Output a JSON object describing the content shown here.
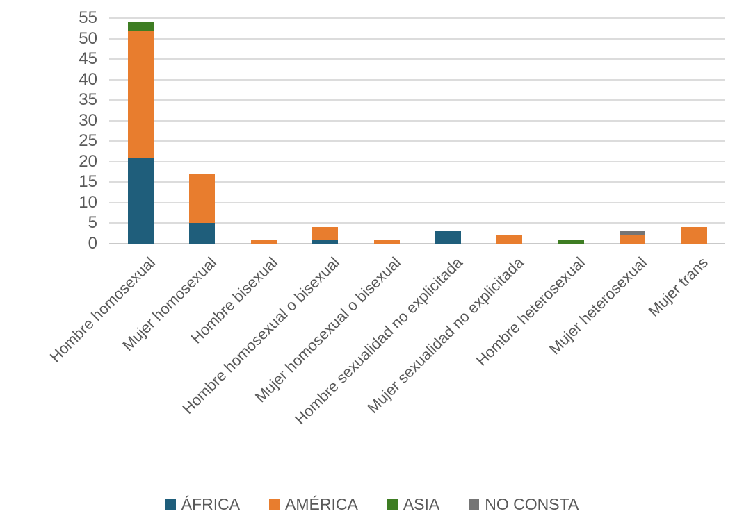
{
  "chart_data": {
    "type": "bar",
    "stacked": true,
    "title": "",
    "xlabel": "",
    "ylabel": "",
    "ylim": [
      0,
      55
    ],
    "ytick_step": 5,
    "grid": true,
    "legend_position": "bottom",
    "categories": [
      "Hombre homosexual",
      "Mujer homosexual",
      "Hombre bisexual",
      "Hombre homosexual o bisexual",
      "Mujer homosexual o bisexual",
      "Hombre sexualidad no explicitada",
      "Mujer sexualidad no explicitada",
      "Hombre heterosexual",
      "Mujer heterosexual",
      "Mujer trans"
    ],
    "series": [
      {
        "name": "ÁFRICA",
        "color": "#1F5E7B",
        "values": [
          21,
          5,
          0,
          1,
          0,
          3,
          0,
          0,
          0,
          0
        ]
      },
      {
        "name": "AMÉRICA",
        "color": "#E87D2E",
        "values": [
          31,
          12,
          1,
          3,
          1,
          0,
          2,
          0,
          2,
          4
        ]
      },
      {
        "name": "ASIA",
        "color": "#3E7D23",
        "values": [
          2,
          0,
          0,
          0,
          0,
          0,
          0,
          1,
          0,
          0
        ]
      },
      {
        "name": "NO CONSTA",
        "color": "#757575",
        "values": [
          0,
          0,
          0,
          0,
          0,
          0,
          0,
          0,
          1,
          0
        ]
      }
    ],
    "totals": [
      54,
      17,
      1,
      4,
      1,
      3,
      2,
      1,
      3,
      4
    ]
  },
  "colors": {
    "gridline": "#dcdcdc",
    "baseline": "#c9c9c9",
    "axis_text": "#595959",
    "background": "#ffffff"
  }
}
